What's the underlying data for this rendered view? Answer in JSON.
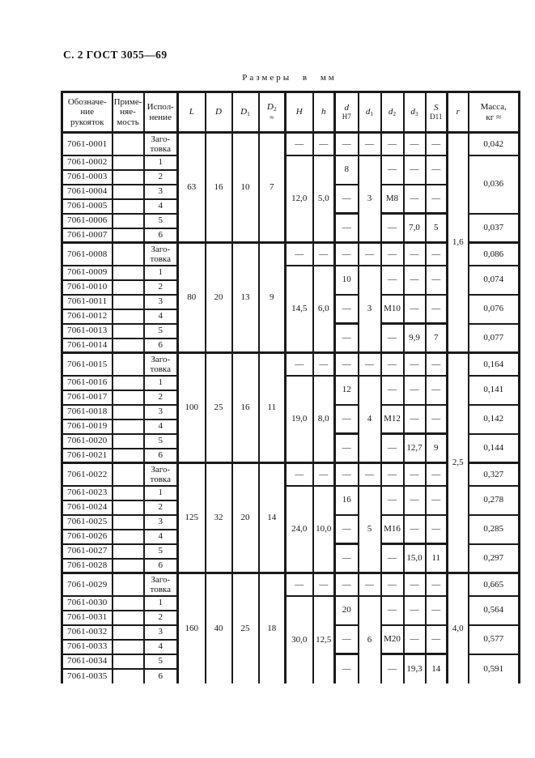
{
  "page": {
    "header": "С. 2 ГОСТ 3055—69",
    "title": "Размеры в мм"
  },
  "table": {
    "dash": "—",
    "version_labels": [
      "Заго-\nтовка",
      "1",
      "2",
      "3",
      "4",
      "5",
      "6"
    ],
    "headers": [
      {
        "id": "designation",
        "text": "Обозначе-\nние\nрукояток"
      },
      {
        "id": "applicability",
        "text": "Приме-\nняе-\nмость"
      },
      {
        "id": "version",
        "text": "Испол-\nнение"
      },
      {
        "id": "L",
        "base": "L",
        "thick": true
      },
      {
        "id": "D",
        "base": "D"
      },
      {
        "id": "D1",
        "base": "D",
        "sub": "1"
      },
      {
        "id": "D2",
        "base": "D",
        "sub": "2",
        "line2": "≈"
      },
      {
        "id": "H",
        "base": "H",
        "thick": true
      },
      {
        "id": "h",
        "base": "h"
      },
      {
        "id": "d",
        "base": "d",
        "line2": "Н7",
        "thick": true
      },
      {
        "id": "d1",
        "base": "d",
        "sub": "1"
      },
      {
        "id": "d2",
        "base": "d",
        "sub": "2"
      },
      {
        "id": "d3",
        "base": "d",
        "sub": "3"
      },
      {
        "id": "S",
        "base": "S",
        "line2": "D11"
      },
      {
        "id": "r",
        "base": "r",
        "thick": true
      },
      {
        "id": "mass",
        "text": "Масса,\nкг ≈"
      }
    ],
    "r_map": {
      "0": {
        "value": "1,6",
        "rows": 14
      },
      "2": {
        "value": "2,5",
        "rows": 14
      },
      "4": {
        "value": "4,0",
        "rows": 7
      }
    },
    "groups": [
      {
        "designations": [
          "7061-0001",
          "7061-0002",
          "7061-0003",
          "7061-0004",
          "7061-0005",
          "7061-0006",
          "7061-0007"
        ],
        "L": "63",
        "D": "16",
        "D1": "10",
        "D2": "7",
        "H": "12,0",
        "h": "5,0",
        "d1": "3",
        "d_sections": [
          "8",
          "—",
          "—"
        ],
        "d2_sections": [
          "—",
          "M8",
          "—"
        ],
        "d3_sections": [
          "—",
          "—",
          "7,0"
        ],
        "S_sections": [
          "—",
          "—",
          "5"
        ],
        "mass": {
          "blank": "0,042",
          "sections": [
            {
              "rows": 4,
              "value": "0,036"
            },
            {
              "rows": 2,
              "value": "0,037"
            }
          ]
        }
      },
      {
        "designations": [
          "7061-0008",
          "7061-0009",
          "7061-0010",
          "7061-0011",
          "7061-0012",
          "7061-0013",
          "7061-0014"
        ],
        "L": "80",
        "D": "20",
        "D1": "13",
        "D2": "9",
        "H": "14,5",
        "h": "6,0",
        "d1": "3",
        "d_sections": [
          "10",
          "—",
          "—"
        ],
        "d2_sections": [
          "—",
          "M10",
          "—"
        ],
        "d3_sections": [
          "—",
          "—",
          "9,9"
        ],
        "S_sections": [
          "—",
          "—",
          "7"
        ],
        "mass": {
          "blank": "0,086",
          "sections": [
            {
              "rows": 2,
              "value": "0,074"
            },
            {
              "rows": 2,
              "value": "0,076"
            },
            {
              "rows": 2,
              "value": "0,077"
            }
          ]
        }
      },
      {
        "designations": [
          "7061-0015",
          "7061-0016",
          "7061-0017",
          "7061-0018",
          "7061-0019",
          "7061-0020",
          "7061-0021"
        ],
        "L": "100",
        "D": "25",
        "D1": "16",
        "D2": "11",
        "H": "19,0",
        "h": "8,0",
        "d1": "4",
        "d_sections": [
          "12",
          "—",
          "—"
        ],
        "d2_sections": [
          "—",
          "M12",
          "—"
        ],
        "d3_sections": [
          "—",
          "—",
          "12,7"
        ],
        "S_sections": [
          "—",
          "—",
          "9"
        ],
        "mass": {
          "blank": "0,164",
          "sections": [
            {
              "rows": 2,
              "value": "0,141"
            },
            {
              "rows": 2,
              "value": "0,142"
            },
            {
              "rows": 2,
              "value": "0,144"
            }
          ]
        }
      },
      {
        "designations": [
          "7061-0022",
          "7061-0023",
          "7061-0024",
          "7061-0025",
          "7061-0026",
          "7061-0027",
          "7061-0028"
        ],
        "L": "125",
        "D": "32",
        "D1": "20",
        "D2": "14",
        "H": "24,0",
        "h": "10,0",
        "d1": "5",
        "d_sections": [
          "16",
          "—",
          "—"
        ],
        "d2_sections": [
          "—",
          "M16",
          "—"
        ],
        "d3_sections": [
          "—",
          "—",
          "15,0"
        ],
        "S_sections": [
          "—",
          "—",
          "11"
        ],
        "mass": {
          "blank": "0,327",
          "sections": [
            {
              "rows": 2,
              "value": "0,278"
            },
            {
              "rows": 2,
              "value": "0,285"
            },
            {
              "rows": 2,
              "value": "0,297"
            }
          ]
        }
      },
      {
        "designations": [
          "7061-0029",
          "7061-0030",
          "7061-0031",
          "7061-0032",
          "7061-0033",
          "7061-0034",
          "7061-0035"
        ],
        "L": "160",
        "D": "40",
        "D1": "25",
        "D2": "18",
        "H": "30,0",
        "h": "12,5",
        "d1": "6",
        "d_sections": [
          "20",
          "—",
          "—"
        ],
        "d2_sections": [
          "—",
          "M20",
          "—"
        ],
        "d3_sections": [
          "—",
          "—",
          "19,3"
        ],
        "S_sections": [
          "—",
          "—",
          "14"
        ],
        "mass": {
          "blank": "0,665",
          "sections": [
            {
              "rows": 2,
              "value": "0,564"
            },
            {
              "rows": 2,
              "value": "0,577"
            },
            {
              "rows": 2,
              "value": "0,591"
            }
          ]
        }
      }
    ]
  }
}
